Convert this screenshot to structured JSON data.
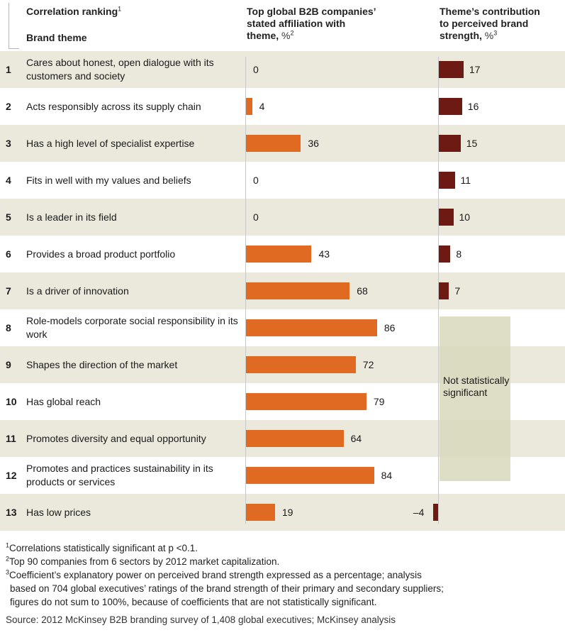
{
  "header": {
    "ranking_title": "Correlation ranking",
    "ranking_sup": "1",
    "brand_theme": "Brand theme",
    "col2_title_line1": "Top global B2B companies’",
    "col2_title_line2": "stated affiliation with",
    "col2_title_line3": "theme,",
    "col2_unit": "%",
    "col2_sup": "2",
    "col3_title_line1": "Theme’s contribution",
    "col3_title_line2": "to perceived brand",
    "col3_title_line3": "strength,",
    "col3_unit": "%",
    "col3_sup": "3"
  },
  "colors": {
    "affiliation_bar": "#e06a22",
    "contribution_bar": "#6e1a14",
    "row_shade": "#ebe8dc",
    "not_significant_box": "#d8d8bc"
  },
  "not_significant_label": "Not statistically significant",
  "chart_data": {
    "type": "bar",
    "orientation": "horizontal",
    "ranks": [
      "1",
      "2",
      "3",
      "4",
      "5",
      "6",
      "7",
      "8",
      "9",
      "10",
      "11",
      "12",
      "13"
    ],
    "categories": [
      "Cares about honest, open dialogue with its customers and society",
      "Acts responsibly across its supply chain",
      "Has a high level of specialist expertise",
      "Fits in well with my values and beliefs",
      "Is a leader in its field",
      "Provides a broad product portfolio",
      "Is a driver of innovation",
      "Role-models corporate social responsibility in its work",
      "Shapes the direction of the market",
      "Has global reach",
      "Promotes diversity and equal opportunity",
      "Promotes and practices sustainability in its products or services",
      "Has low prices"
    ],
    "series": [
      {
        "name": "Top global B2B companies’ stated affiliation with theme, %",
        "values": [
          0,
          4,
          36,
          0,
          0,
          43,
          68,
          86,
          72,
          79,
          64,
          84,
          19
        ],
        "labels": [
          "0",
          "4",
          "36",
          "0",
          "0",
          "43",
          "68",
          "86",
          "72",
          "79",
          "64",
          "84",
          "19"
        ]
      },
      {
        "name": "Theme’s contribution to perceived brand strength, %",
        "values": [
          17,
          16,
          15,
          11,
          10,
          8,
          7,
          null,
          null,
          null,
          null,
          null,
          -4
        ],
        "labels": [
          "17",
          "16",
          "15",
          "11",
          "10",
          "8",
          "7",
          "",
          "",
          "",
          "",
          "",
          "–4"
        ]
      }
    ],
    "xlim": [
      0,
      100
    ]
  },
  "footnotes": [
    {
      "sup": "1",
      "text": "Correlations statistically significant at p <0.1."
    },
    {
      "sup": "2",
      "text": "Top 90 companies from 6 sectors by 2012 market capitalization."
    },
    {
      "sup": "3",
      "text": "Coefficient’s explanatory power on perceived brand strength expressed as a percentage; analysis"
    }
  ],
  "footnote3_cont1": "based on 704 global executives’ ratings of the brand strength of their primary and secondary suppliers;",
  "footnote3_cont2": "figures do not sum to 100%, because of coefficients that are not statistically significant.",
  "source": "Source: 2012 McKinsey B2B branding survey of 1,408 global executives; McKinsey analysis"
}
